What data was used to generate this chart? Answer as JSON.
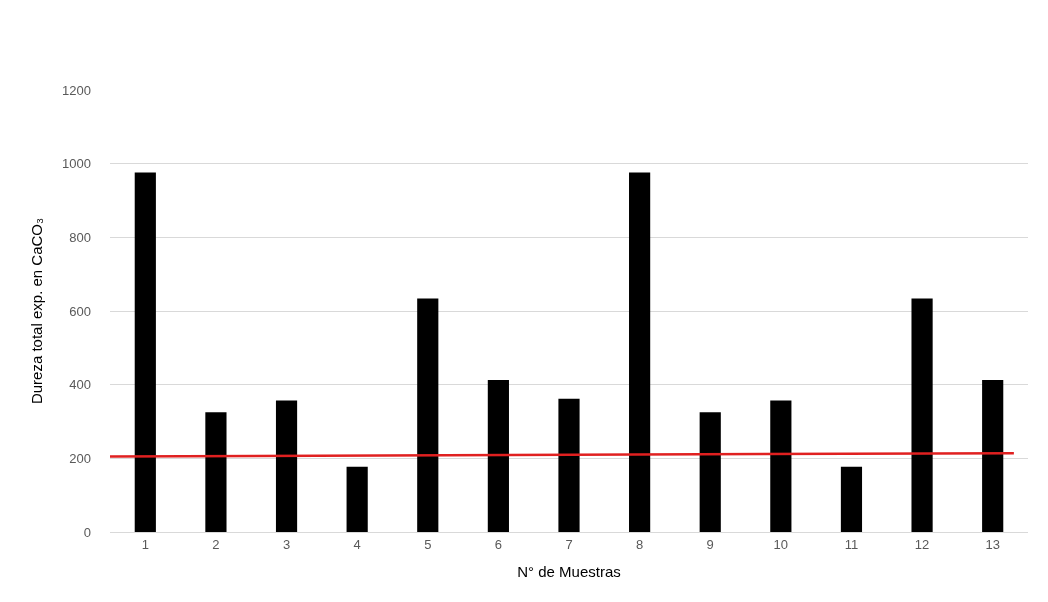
{
  "chart_data": {
    "type": "bar",
    "xlabel": "N° de Muestras",
    "ylabel": "Dureza total exp. en CaCO₃",
    "x": [
      1,
      2,
      3,
      4,
      5,
      6,
      7,
      8,
      9,
      10,
      11,
      12,
      13
    ],
    "xlim": [
      0.5,
      13.5
    ],
    "xticks": [
      1,
      2,
      3,
      4,
      5,
      6,
      7,
      8,
      9,
      10,
      11,
      12,
      13
    ],
    "ylim": [
      0,
      1200
    ],
    "yticks": [
      0,
      200,
      400,
      600,
      800,
      1000,
      1200
    ],
    "grid": "y",
    "legend": false,
    "series": [
      {
        "color": "#000000",
        "values": [
          976,
          325,
          357,
          177,
          634,
          413,
          362,
          976,
          325,
          357,
          177,
          634,
          413
        ]
      },
      {
        "type": "line",
        "color": "#e02020",
        "x": [
          0.5,
          13.3
        ],
        "values": [
          205,
          214
        ],
        "line_style": "solid",
        "marker": "none"
      }
    ]
  }
}
